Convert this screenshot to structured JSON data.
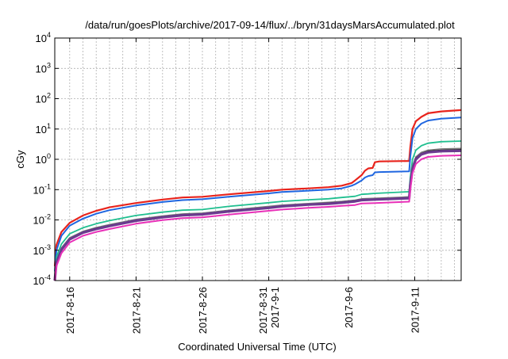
{
  "chart_data": {
    "type": "line",
    "title": "/data/run/goesPlots/archive/2017-09-14/flux/../bryn/31daysMarsAccumulated.plot",
    "xlabel": "Coordinated Universal Time (UTC)",
    "ylabel": "cGy",
    "y_scale": "log",
    "ylim": [
      0.0001,
      10000
    ],
    "xlim": [
      "2017-08-14T21:00",
      "2017-09-14T12:00"
    ],
    "grid": true,
    "legend": "none",
    "y_ticks": [
      {
        "value": 0.0001,
        "base": "10",
        "exp": "-4"
      },
      {
        "value": 0.001,
        "base": "10",
        "exp": "-3"
      },
      {
        "value": 0.01,
        "base": "10",
        "exp": "-2"
      },
      {
        "value": 0.1,
        "base": "10",
        "exp": "-1"
      },
      {
        "value": 1,
        "base": "10",
        "exp": "0"
      },
      {
        "value": 10,
        "base": "10",
        "exp": "1"
      },
      {
        "value": 100,
        "base": "10",
        "exp": "2"
      },
      {
        "value": 1000,
        "base": "10",
        "exp": "3"
      },
      {
        "value": 10000,
        "base": "10",
        "exp": "4"
      }
    ],
    "x_ticks": [
      {
        "value": "2017-08-16",
        "lines": [
          "2017-8-16"
        ]
      },
      {
        "value": "2017-08-21",
        "lines": [
          "2017-8-21"
        ]
      },
      {
        "value": "2017-08-26",
        "lines": [
          "2017-8-26"
        ]
      },
      {
        "value": "2017-08-31",
        "lines": [
          "2017-8-31",
          "2017-9-1"
        ]
      },
      {
        "value": "2017-09-06",
        "lines": [
          "2017-9-6"
        ]
      },
      {
        "value": "2017-09-11",
        "lines": [
          "2017-9-11"
        ]
      }
    ],
    "x_grid": [
      "2017-08-16",
      "2017-08-17",
      "2017-08-18",
      "2017-08-19",
      "2017-08-20",
      "2017-08-21",
      "2017-08-22",
      "2017-08-23",
      "2017-08-24",
      "2017-08-25",
      "2017-08-26",
      "2017-08-27",
      "2017-08-28",
      "2017-08-29",
      "2017-08-30",
      "2017-08-31",
      "2017-09-01",
      "2017-09-02",
      "2017-09-03",
      "2017-09-04",
      "2017-09-05",
      "2017-09-06",
      "2017-09-07",
      "2017-09-08",
      "2017-09-09",
      "2017-09-10",
      "2017-09-11",
      "2017-09-12",
      "2017-09-13",
      "2017-09-14"
    ],
    "series": [
      {
        "color": "#e8231c",
        "width": 2.2,
        "points": [
          [
            "2017-08-14T21:00",
            0.0003
          ],
          [
            "2017-08-15T00:00",
            0.0015
          ],
          [
            "2017-08-15T09:00",
            0.004
          ],
          [
            "2017-08-16T00:00",
            0.008
          ],
          [
            "2017-08-17T00:00",
            0.014
          ],
          [
            "2017-08-18T00:00",
            0.02
          ],
          [
            "2017-08-19T00:00",
            0.026
          ],
          [
            "2017-08-21T00:00",
            0.036
          ],
          [
            "2017-08-23T00:00",
            0.047
          ],
          [
            "2017-08-24T12:00",
            0.055
          ],
          [
            "2017-08-26T00:00",
            0.058
          ],
          [
            "2017-08-28T00:00",
            0.07
          ],
          [
            "2017-08-31T00:00",
            0.09
          ],
          [
            "2017-09-01T00:00",
            0.1
          ],
          [
            "2017-09-03T00:00",
            0.11
          ],
          [
            "2017-09-04T12:00",
            0.12
          ],
          [
            "2017-09-05T12:00",
            0.135
          ],
          [
            "2017-09-06T06:00",
            0.165
          ],
          [
            "2017-09-06T12:00",
            0.2
          ],
          [
            "2017-09-07T00:00",
            0.3
          ],
          [
            "2017-09-07T06:00",
            0.42
          ],
          [
            "2017-09-07T12:00",
            0.5
          ],
          [
            "2017-09-07T20:00",
            0.52
          ],
          [
            "2017-09-08T00:00",
            0.8
          ],
          [
            "2017-09-08T08:00",
            0.85
          ],
          [
            "2017-09-10T14:00",
            0.88
          ],
          [
            "2017-09-10T16:00",
            2.5
          ],
          [
            "2017-09-10T20:00",
            10
          ],
          [
            "2017-09-11T02:00",
            18
          ],
          [
            "2017-09-11T12:00",
            25
          ],
          [
            "2017-09-12T00:00",
            33
          ],
          [
            "2017-09-13T00:00",
            38
          ],
          [
            "2017-09-14T12:00",
            42
          ]
        ]
      },
      {
        "color": "#1f66e0",
        "width": 2.0,
        "points": [
          [
            "2017-08-14T21:00",
            0.0002
          ],
          [
            "2017-08-15T00:00",
            0.001
          ],
          [
            "2017-08-15T09:00",
            0.003
          ],
          [
            "2017-08-16T00:00",
            0.0065
          ],
          [
            "2017-08-17T00:00",
            0.011
          ],
          [
            "2017-08-18T00:00",
            0.016
          ],
          [
            "2017-08-19T00:00",
            0.021
          ],
          [
            "2017-08-21T00:00",
            0.03
          ],
          [
            "2017-08-23T00:00",
            0.039
          ],
          [
            "2017-08-24T12:00",
            0.045
          ],
          [
            "2017-08-26T00:00",
            0.048
          ],
          [
            "2017-08-28T00:00",
            0.058
          ],
          [
            "2017-08-31T00:00",
            0.075
          ],
          [
            "2017-09-01T00:00",
            0.083
          ],
          [
            "2017-09-03T00:00",
            0.092
          ],
          [
            "2017-09-04T12:00",
            0.1
          ],
          [
            "2017-09-05T12:00",
            0.11
          ],
          [
            "2017-09-06T06:00",
            0.135
          ],
          [
            "2017-09-06T12:00",
            0.15
          ],
          [
            "2017-09-07T00:00",
            0.2
          ],
          [
            "2017-09-07T06:00",
            0.25
          ],
          [
            "2017-09-07T12:00",
            0.28
          ],
          [
            "2017-09-07T20:00",
            0.3
          ],
          [
            "2017-09-08T00:00",
            0.37
          ],
          [
            "2017-09-08T08:00",
            0.38
          ],
          [
            "2017-09-10T14:00",
            0.4
          ],
          [
            "2017-09-10T16:00",
            1.2
          ],
          [
            "2017-09-10T20:00",
            5
          ],
          [
            "2017-09-11T02:00",
            10
          ],
          [
            "2017-09-11T12:00",
            15
          ],
          [
            "2017-09-12T00:00",
            19
          ],
          [
            "2017-09-13T00:00",
            22
          ],
          [
            "2017-09-14T12:00",
            24
          ]
        ]
      },
      {
        "color": "#1fbf8f",
        "width": 1.8,
        "points": [
          [
            "2017-08-14T21:00",
            0.00012
          ],
          [
            "2017-08-15T00:00",
            0.0006
          ],
          [
            "2017-08-15T09:00",
            0.0016
          ],
          [
            "2017-08-16T00:00",
            0.0035
          ],
          [
            "2017-08-17T00:00",
            0.0055
          ],
          [
            "2017-08-18T00:00",
            0.0075
          ],
          [
            "2017-08-19T00:00",
            0.0095
          ],
          [
            "2017-08-21T00:00",
            0.014
          ],
          [
            "2017-08-23T00:00",
            0.018
          ],
          [
            "2017-08-24T12:00",
            0.021
          ],
          [
            "2017-08-26T00:00",
            0.022
          ],
          [
            "2017-08-28T00:00",
            0.028
          ],
          [
            "2017-08-31T00:00",
            0.037
          ],
          [
            "2017-09-01T00:00",
            0.041
          ],
          [
            "2017-09-03T00:00",
            0.046
          ],
          [
            "2017-09-04T12:00",
            0.05
          ],
          [
            "2017-09-05T12:00",
            0.055
          ],
          [
            "2017-09-06T12:00",
            0.06
          ],
          [
            "2017-09-07T00:00",
            0.07
          ],
          [
            "2017-09-07T12:00",
            0.072
          ],
          [
            "2017-09-08T00:00",
            0.075
          ],
          [
            "2017-09-10T14:00",
            0.085
          ],
          [
            "2017-09-10T16:00",
            0.25
          ],
          [
            "2017-09-10T20:00",
            1
          ],
          [
            "2017-09-11T02:00",
            2
          ],
          [
            "2017-09-11T12:00",
            2.8
          ],
          [
            "2017-09-12T00:00",
            3.4
          ],
          [
            "2017-09-13T00:00",
            3.8
          ],
          [
            "2017-09-14T12:00",
            4.0
          ]
        ]
      },
      {
        "color": "#7a7a7a",
        "width": 1.5,
        "points": [
          [
            "2017-08-14T21:00",
            0.00011
          ],
          [
            "2017-08-15T00:00",
            0.00045
          ],
          [
            "2017-08-15T09:00",
            0.0012
          ],
          [
            "2017-08-16T00:00",
            0.0026
          ],
          [
            "2017-08-17T00:00",
            0.0042
          ],
          [
            "2017-08-18T00:00",
            0.0056
          ],
          [
            "2017-08-19T00:00",
            0.007
          ],
          [
            "2017-08-21T00:00",
            0.0105
          ],
          [
            "2017-08-23T00:00",
            0.0135
          ],
          [
            "2017-08-24T12:00",
            0.0158
          ],
          [
            "2017-08-26T00:00",
            0.0168
          ],
          [
            "2017-08-28T00:00",
            0.021
          ],
          [
            "2017-08-31T00:00",
            0.028
          ],
          [
            "2017-09-01T00:00",
            0.031
          ],
          [
            "2017-09-03T00:00",
            0.035
          ],
          [
            "2017-09-04T12:00",
            0.038
          ],
          [
            "2017-09-05T12:00",
            0.041
          ],
          [
            "2017-09-06T12:00",
            0.045
          ],
          [
            "2017-09-07T00:00",
            0.05
          ],
          [
            "2017-09-08T00:00",
            0.052
          ],
          [
            "2017-09-10T14:00",
            0.058
          ],
          [
            "2017-09-10T16:00",
            0.16
          ],
          [
            "2017-09-10T20:00",
            0.6
          ],
          [
            "2017-09-11T02:00",
            1.2
          ],
          [
            "2017-09-11T12:00",
            1.7
          ],
          [
            "2017-09-12T00:00",
            2.0
          ],
          [
            "2017-09-13T00:00",
            2.2
          ],
          [
            "2017-09-14T12:00",
            2.3
          ]
        ]
      },
      {
        "color": "#222222",
        "width": 1.5,
        "points": [
          [
            "2017-08-14T21:00",
            0.0001
          ],
          [
            "2017-08-15T00:00",
            0.00042
          ],
          [
            "2017-08-15T09:00",
            0.0011
          ],
          [
            "2017-08-16T00:00",
            0.0024
          ],
          [
            "2017-08-17T00:00",
            0.004
          ],
          [
            "2017-08-18T00:00",
            0.0053
          ],
          [
            "2017-08-19T00:00",
            0.0066
          ],
          [
            "2017-08-21T00:00",
            0.0098
          ],
          [
            "2017-08-23T00:00",
            0.0128
          ],
          [
            "2017-08-24T12:00",
            0.015
          ],
          [
            "2017-08-26T00:00",
            0.016
          ],
          [
            "2017-08-28T00:00",
            0.02
          ],
          [
            "2017-08-31T00:00",
            0.026
          ],
          [
            "2017-09-01T00:00",
            0.029
          ],
          [
            "2017-09-03T00:00",
            0.033
          ],
          [
            "2017-09-04T12:00",
            0.036
          ],
          [
            "2017-09-05T12:00",
            0.039
          ],
          [
            "2017-09-06T12:00",
            0.043
          ],
          [
            "2017-09-07T00:00",
            0.047
          ],
          [
            "2017-09-08T00:00",
            0.049
          ],
          [
            "2017-09-10T14:00",
            0.054
          ],
          [
            "2017-09-10T16:00",
            0.15
          ],
          [
            "2017-09-10T20:00",
            0.55
          ],
          [
            "2017-09-11T02:00",
            1.1
          ],
          [
            "2017-09-11T12:00",
            1.55
          ],
          [
            "2017-09-12T00:00",
            1.85
          ],
          [
            "2017-09-13T00:00",
            2.0
          ],
          [
            "2017-09-14T12:00",
            2.1
          ]
        ]
      },
      {
        "color": "#6b3a8f",
        "width": 3.2,
        "points": [
          [
            "2017-08-14T21:00",
            0.0001
          ],
          [
            "2017-08-15T00:00",
            0.0004
          ],
          [
            "2017-08-15T09:00",
            0.00105
          ],
          [
            "2017-08-16T00:00",
            0.0023
          ],
          [
            "2017-08-17T00:00",
            0.0038
          ],
          [
            "2017-08-18T00:00",
            0.005
          ],
          [
            "2017-08-19T00:00",
            0.0063
          ],
          [
            "2017-08-21T00:00",
            0.0094
          ],
          [
            "2017-08-23T00:00",
            0.0122
          ],
          [
            "2017-08-24T12:00",
            0.0143
          ],
          [
            "2017-08-26T00:00",
            0.0152
          ],
          [
            "2017-08-28T00:00",
            0.019
          ],
          [
            "2017-08-31T00:00",
            0.025
          ],
          [
            "2017-09-01T00:00",
            0.028
          ],
          [
            "2017-09-03T00:00",
            0.032
          ],
          [
            "2017-09-04T12:00",
            0.034
          ],
          [
            "2017-09-05T12:00",
            0.037
          ],
          [
            "2017-09-06T12:00",
            0.041
          ],
          [
            "2017-09-07T00:00",
            0.045
          ],
          [
            "2017-09-08T00:00",
            0.047
          ],
          [
            "2017-09-10T14:00",
            0.052
          ],
          [
            "2017-09-10T16:00",
            0.14
          ],
          [
            "2017-09-10T20:00",
            0.5
          ],
          [
            "2017-09-11T02:00",
            1.0
          ],
          [
            "2017-09-11T12:00",
            1.45
          ],
          [
            "2017-09-12T00:00",
            1.7
          ],
          [
            "2017-09-13T00:00",
            1.85
          ],
          [
            "2017-09-14T12:00",
            1.9
          ]
        ]
      },
      {
        "color": "#e830b8",
        "width": 2.0,
        "points": [
          [
            "2017-08-14T21:00",
            0.0001
          ],
          [
            "2017-08-15T00:00",
            0.0003
          ],
          [
            "2017-08-15T09:00",
            0.0008
          ],
          [
            "2017-08-16T00:00",
            0.0018
          ],
          [
            "2017-08-17T00:00",
            0.003
          ],
          [
            "2017-08-18T00:00",
            0.004
          ],
          [
            "2017-08-19T00:00",
            0.005
          ],
          [
            "2017-08-21T00:00",
            0.0075
          ],
          [
            "2017-08-23T00:00",
            0.0098
          ],
          [
            "2017-08-24T12:00",
            0.0115
          ],
          [
            "2017-08-26T00:00",
            0.0122
          ],
          [
            "2017-08-28T00:00",
            0.015
          ],
          [
            "2017-08-31T00:00",
            0.02
          ],
          [
            "2017-09-01T00:00",
            0.022
          ],
          [
            "2017-09-03T00:00",
            0.025
          ],
          [
            "2017-09-04T12:00",
            0.027
          ],
          [
            "2017-09-05T12:00",
            0.029
          ],
          [
            "2017-09-06T12:00",
            0.031
          ],
          [
            "2017-09-07T00:00",
            0.035
          ],
          [
            "2017-09-08T00:00",
            0.036
          ],
          [
            "2017-09-10T14:00",
            0.04
          ],
          [
            "2017-09-10T16:00",
            0.1
          ],
          [
            "2017-09-10T20:00",
            0.35
          ],
          [
            "2017-09-11T02:00",
            0.7
          ],
          [
            "2017-09-11T12:00",
            1.0
          ],
          [
            "2017-09-12T00:00",
            1.2
          ],
          [
            "2017-09-13T00:00",
            1.3
          ],
          [
            "2017-09-14T12:00",
            1.35
          ]
        ]
      }
    ]
  }
}
